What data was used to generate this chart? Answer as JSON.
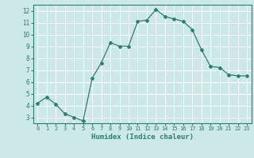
{
  "xlabel": "Humidex (Indice chaleur)",
  "ylabel": "",
  "x": [
    0,
    1,
    2,
    3,
    4,
    5,
    6,
    7,
    8,
    9,
    10,
    11,
    12,
    13,
    14,
    15,
    16,
    17,
    18,
    19,
    20,
    21,
    22,
    23
  ],
  "y": [
    4.2,
    4.7,
    4.1,
    3.3,
    3.0,
    2.7,
    6.3,
    7.6,
    9.3,
    9.0,
    9.0,
    11.1,
    11.2,
    12.1,
    11.5,
    11.3,
    11.1,
    10.4,
    8.7,
    7.3,
    7.2,
    6.6,
    6.5,
    6.5
  ],
  "line_color": "#2e7d6e",
  "bg_color": "#cce8e8",
  "grid_color": "#ffffff",
  "tick_color": "#2e7d6e",
  "label_color": "#2e7d6e",
  "ylim": [
    2.5,
    12.5
  ],
  "xlim": [
    -0.5,
    23.5
  ],
  "yticks": [
    3,
    4,
    5,
    6,
    7,
    8,
    9,
    10,
    11,
    12
  ],
  "xticks": [
    0,
    1,
    2,
    3,
    4,
    5,
    6,
    7,
    8,
    9,
    10,
    11,
    12,
    13,
    14,
    15,
    16,
    17,
    18,
    19,
    20,
    21,
    22,
    23
  ]
}
